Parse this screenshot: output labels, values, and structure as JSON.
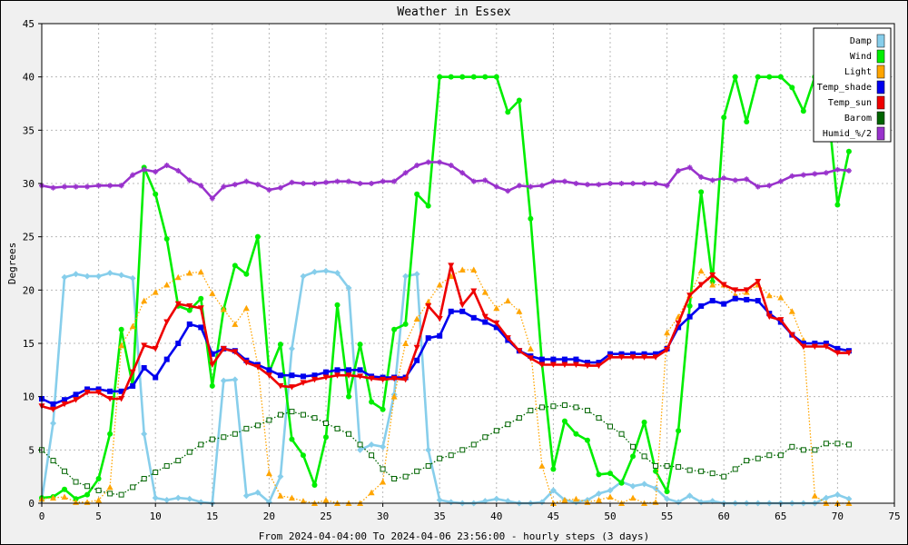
{
  "chart_data": {
    "type": "line",
    "title": "Weather in Essex",
    "xlabel": "From 2024-04-04:00 To 2024-04-06 23:56:00 - hourly steps (3 days)",
    "ylabel": "Degrees",
    "xlim": [
      0,
      75
    ],
    "ylim": [
      0,
      45
    ],
    "xticks": [
      0,
      5,
      10,
      15,
      20,
      25,
      30,
      35,
      40,
      45,
      50,
      55,
      60,
      65,
      70,
      75
    ],
    "yticks": [
      0,
      5,
      10,
      15,
      20,
      25,
      30,
      35,
      40,
      45
    ],
    "grid": true,
    "legend_position": "top-right",
    "x": [
      0,
      1,
      2,
      3,
      4,
      5,
      6,
      7,
      8,
      9,
      10,
      11,
      12,
      13,
      14,
      15,
      16,
      17,
      18,
      19,
      20,
      21,
      22,
      23,
      24,
      25,
      26,
      27,
      28,
      29,
      30,
      31,
      32,
      33,
      34,
      35,
      36,
      37,
      38,
      39,
      40,
      41,
      42,
      43,
      44,
      45,
      46,
      47,
      48,
      49,
      50,
      51,
      52,
      53,
      54,
      55,
      56,
      57,
      58,
      59,
      60,
      61,
      62,
      63,
      64,
      65,
      66,
      67,
      68,
      69,
      70,
      71
    ],
    "series": [
      {
        "name": "Damp",
        "color": "#87ceeb",
        "style": "solid",
        "marker": "diamond",
        "values": [
          0.3,
          7.5,
          21.2,
          21.5,
          21.3,
          21.3,
          21.6,
          21.4,
          21.1,
          6.5,
          0.5,
          0.3,
          0.5,
          0.4,
          0.1,
          0,
          11.5,
          11.6,
          0.7,
          1,
          0.1,
          2.5,
          14.5,
          21.3,
          21.7,
          21.8,
          21.6,
          20.2,
          5,
          5.5,
          5.3,
          10.2,
          21.3,
          21.5,
          5,
          0.3,
          0.1,
          0,
          0,
          0.2,
          0.4,
          0.2,
          0,
          0,
          0.1,
          1.2,
          0.3,
          0.1,
          0.3,
          0.9,
          1.2,
          2,
          1.6,
          1.8,
          1.4,
          0.4,
          0.1,
          0.7,
          0.1,
          0.2,
          0,
          0,
          0,
          0,
          0,
          0,
          0,
          0,
          0,
          0.5,
          0.8,
          0.4
        ]
      },
      {
        "name": "Wind",
        "color": "#00ee00",
        "style": "solid",
        "marker": "circle",
        "values": [
          0.5,
          0.6,
          1.3,
          0.4,
          0.8,
          2.3,
          6.5,
          16.3,
          11,
          31.5,
          29,
          24.8,
          18.5,
          18.1,
          19.2,
          11,
          18.2,
          22.3,
          21.5,
          25,
          12.3,
          14.9,
          6,
          4.5,
          1.7,
          6.2,
          18.6,
          10,
          14.9,
          9.5,
          8.8,
          16.3,
          16.8,
          29,
          27.9,
          40,
          40,
          40,
          40,
          40,
          40,
          36.7,
          37.8,
          26.7,
          13.1,
          3.2,
          7.7,
          6.5,
          5.9,
          2.7,
          2.8,
          1.9,
          4.4,
          7.6,
          3,
          1.1,
          6.8,
          18.5,
          29.2,
          20.8,
          36.2,
          40,
          35.8,
          40,
          40,
          40,
          39,
          36.8,
          40,
          39,
          28,
          33
        ]
      },
      {
        "name": "Light",
        "color": "#ffa500",
        "style": "dotted",
        "marker": "triangle",
        "values": [
          0.4,
          0.5,
          0.6,
          0.1,
          0.1,
          0.3,
          1.5,
          14.8,
          16.6,
          19,
          19.8,
          20.5,
          21.2,
          21.6,
          21.7,
          19.7,
          18.2,
          16.8,
          18.3,
          13,
          2.8,
          0.7,
          0.5,
          0.2,
          0,
          0.3,
          0,
          0,
          0,
          1,
          2,
          10,
          15,
          17.3,
          18.9,
          20.5,
          21.3,
          21.9,
          21.9,
          19.8,
          18.3,
          19,
          18,
          14.5,
          3.5,
          0,
          0.3,
          0.4,
          0.1,
          0.3,
          0.6,
          0,
          0.5,
          0,
          0.1,
          16,
          17.5,
          19.5,
          21.8,
          20.5,
          20.5,
          19.5,
          19.8,
          20.5,
          19.5,
          19.3,
          18,
          15.3,
          0.7,
          0,
          0,
          0
        ]
      },
      {
        "name": "Temp_shade",
        "color": "#0000ee",
        "style": "solid",
        "marker": "square",
        "values": [
          9.8,
          9.3,
          9.7,
          10.2,
          10.7,
          10.7,
          10.5,
          10.5,
          11,
          12.7,
          11.8,
          13.5,
          15,
          16.8,
          16.5,
          14,
          14.5,
          14.3,
          13.4,
          13,
          12.5,
          12,
          12,
          11.9,
          12,
          12.3,
          12.5,
          12.5,
          12.5,
          11.9,
          11.8,
          11.8,
          11.8,
          13.4,
          15.5,
          15.7,
          18,
          18,
          17.4,
          17,
          16.5,
          15.3,
          14.3,
          13.8,
          13.5,
          13.5,
          13.5,
          13.5,
          13.2,
          13.2,
          14,
          14,
          14,
          14,
          14,
          14.5,
          16.5,
          17.5,
          18.5,
          19,
          18.7,
          19.2,
          19.1,
          19,
          17.8,
          17,
          15.8,
          15,
          15,
          15,
          14.5,
          14.3
        ]
      },
      {
        "name": "Temp_sun",
        "color": "#ee0000",
        "style": "solid",
        "marker": "triangle-down",
        "values": [
          9.1,
          8.8,
          9.3,
          9.7,
          10.4,
          10.4,
          9.8,
          9.8,
          12.3,
          14.8,
          14.5,
          17,
          18.7,
          18.5,
          18.3,
          13,
          14.5,
          14.2,
          13.2,
          12.8,
          12,
          11,
          10.9,
          11.3,
          11.6,
          11.8,
          12,
          12,
          11.9,
          11.7,
          11.6,
          11.7,
          11.6,
          14.6,
          18.5,
          17.3,
          22.3,
          18.6,
          19.9,
          17.5,
          16.9,
          15.5,
          14.3,
          13.6,
          13,
          13,
          13,
          13,
          12.9,
          12.9,
          13.7,
          13.7,
          13.7,
          13.7,
          13.7,
          14.4,
          16.9,
          19.5,
          20.5,
          21.4,
          20.5,
          20,
          20,
          20.8,
          17.5,
          17.2,
          15.8,
          14.7,
          14.7,
          14.7,
          14.1,
          14.1
        ]
      },
      {
        "name": "Barom",
        "color": "#006400",
        "style": "dotted",
        "marker": "open-square",
        "values": [
          5,
          4,
          3,
          2,
          1.6,
          1.2,
          0.9,
          0.8,
          1.5,
          2.3,
          2.9,
          3.5,
          4,
          4.8,
          5.5,
          6,
          6.2,
          6.5,
          7,
          7.3,
          7.8,
          8.3,
          8.6,
          8.3,
          8,
          7.5,
          7,
          6.5,
          5.5,
          4.5,
          3.2,
          2.3,
          2.5,
          3,
          3.5,
          4.2,
          4.5,
          5,
          5.5,
          6.2,
          6.8,
          7.4,
          8,
          8.7,
          9,
          9.1,
          9.2,
          9,
          8.7,
          8,
          7.2,
          6.5,
          5.3,
          4.4,
          3.5,
          3.5,
          3.4,
          3.1,
          3,
          2.8,
          2.5,
          3.2,
          4,
          4.2,
          4.5,
          4.5,
          5.3,
          5,
          5,
          5.6,
          5.6,
          5.5
        ]
      },
      {
        "name": "Humid_%/2",
        "color": "#9932cc",
        "style": "solid",
        "marker": "star",
        "values": [
          29.8,
          29.6,
          29.7,
          29.7,
          29.7,
          29.8,
          29.8,
          29.8,
          30.8,
          31.3,
          31.1,
          31.7,
          31.2,
          30.3,
          29.8,
          28.6,
          29.7,
          29.9,
          30.2,
          29.9,
          29.4,
          29.6,
          30.1,
          30,
          30,
          30.1,
          30.2,
          30.2,
          30,
          30,
          30.2,
          30.2,
          31,
          31.7,
          32,
          32,
          31.7,
          31,
          30.2,
          30.3,
          29.7,
          29.3,
          29.8,
          29.7,
          29.8,
          30.2,
          30.2,
          30,
          29.9,
          29.9,
          30,
          30,
          30,
          30,
          30,
          29.8,
          31.2,
          31.5,
          30.6,
          30.3,
          30.5,
          30.3,
          30.4,
          29.7,
          29.8,
          30.2,
          30.7,
          30.8,
          30.9,
          31,
          31.3,
          31.2
        ]
      }
    ]
  }
}
